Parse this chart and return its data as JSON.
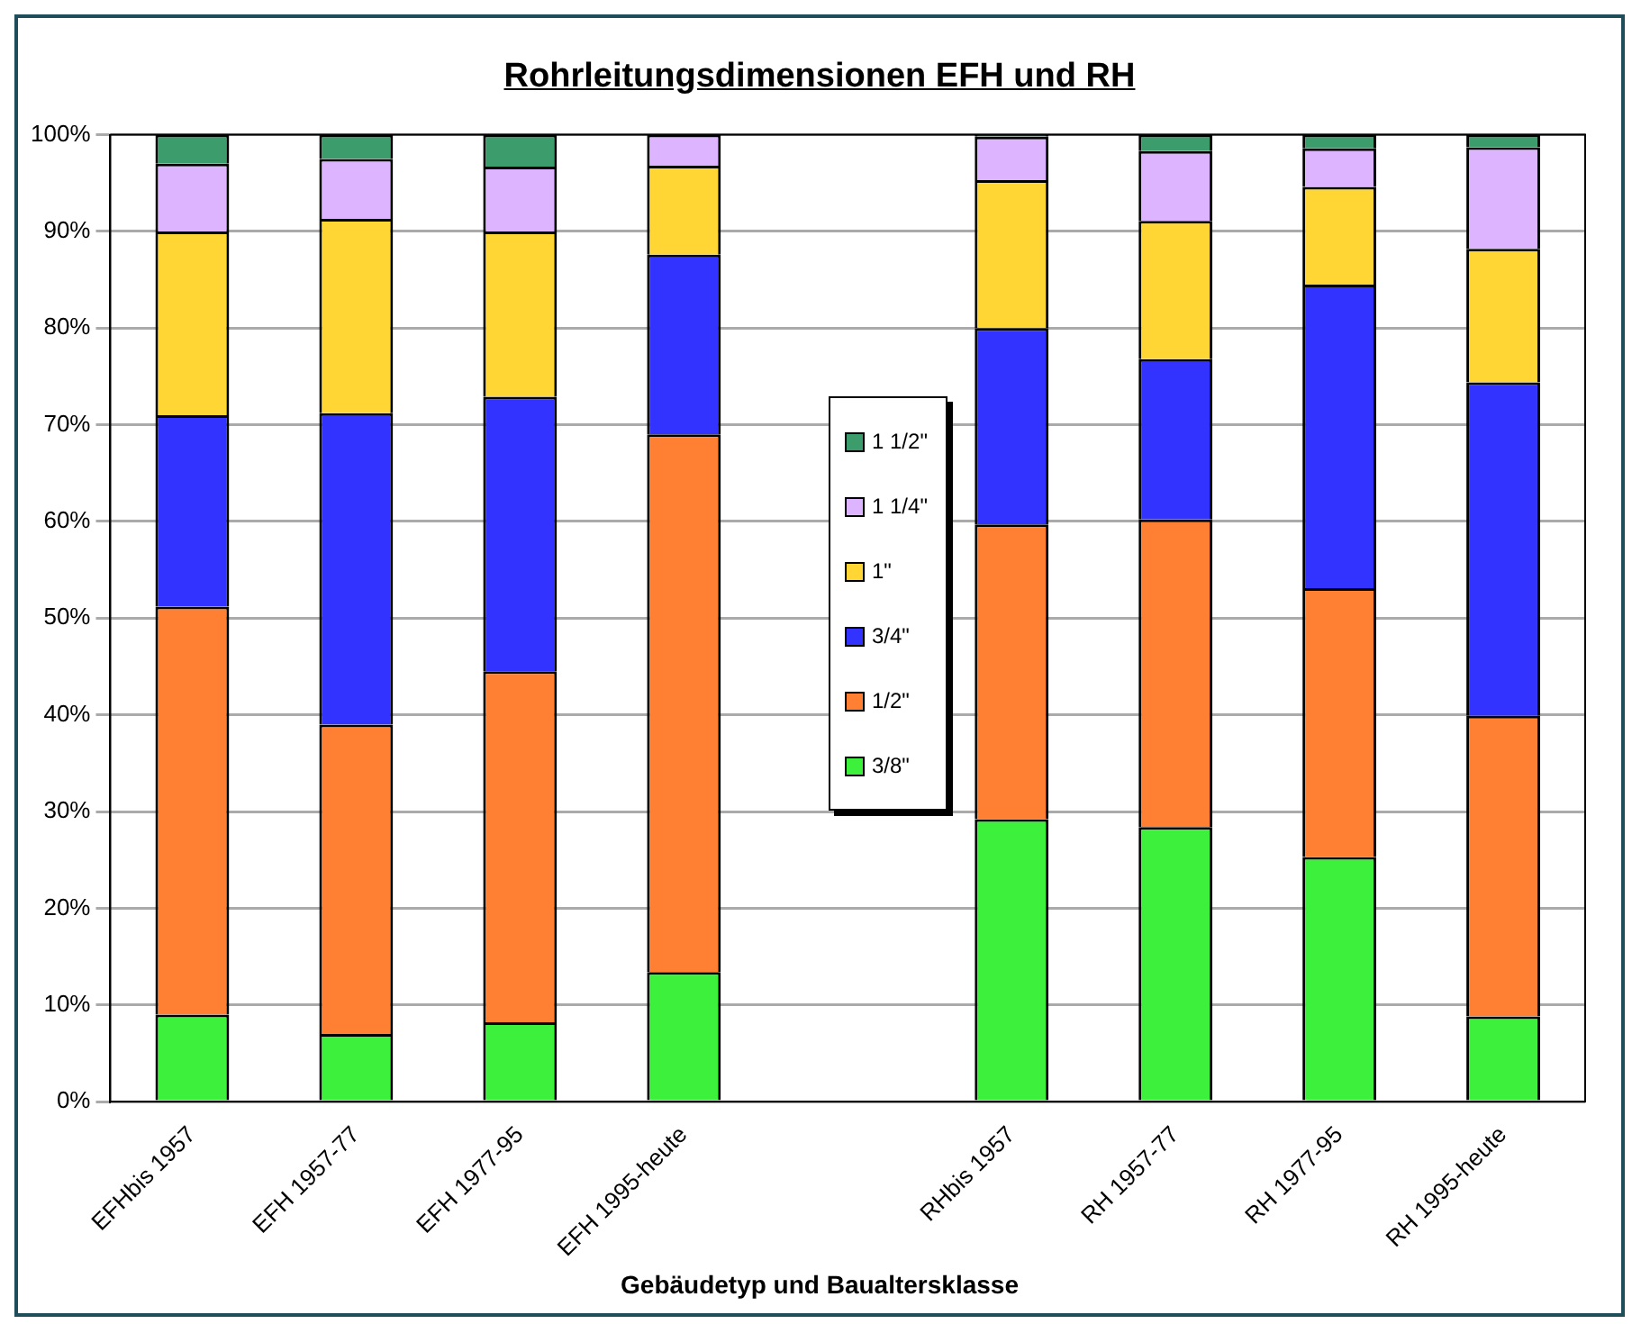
{
  "chart_data": {
    "type": "bar",
    "stacked": true,
    "title": "Rohrleitungsdimensionen EFH und RH",
    "xlabel": "Gebäudetyp und Baualtersklasse",
    "categories": [
      "EFHbis 1957",
      "EFH 1957-77",
      "EFH 1977-95",
      "EFH 1995-heute",
      null,
      "RHbis 1957",
      "RH 1957-77",
      "RH 1977-95",
      "RH 1995-heute"
    ],
    "series": [
      {
        "name": "3/8\"",
        "color": "#3cf03c",
        "values": [
          9,
          7,
          8.2,
          13.4,
          null,
          29.2,
          28.4,
          25.3,
          8.8
        ]
      },
      {
        "name": "1/2\"",
        "color": "#ff8033",
        "values": [
          42.2,
          32,
          36.3,
          55.6,
          null,
          30.5,
          31.8,
          27.8,
          31.1
        ]
      },
      {
        "name": "3/4\"",
        "color": "#3333ff",
        "values": [
          19.8,
          32.2,
          28.4,
          18.6,
          null,
          20.3,
          16.6,
          31.4,
          34.5
        ]
      },
      {
        "name": "1\"",
        "color": "#ffd633",
        "values": [
          19,
          20.1,
          17.1,
          9.2,
          null,
          15.3,
          14.3,
          10.1,
          13.8
        ]
      },
      {
        "name": "1 1/4\"",
        "color": "#dcb4ff",
        "values": [
          7,
          6.2,
          6.7,
          3.2,
          null,
          4.5,
          7.2,
          4,
          10.5
        ]
      },
      {
        "name": "1 1/2\"",
        "color": "#3c9c6c",
        "values": [
          3,
          2.5,
          3.3,
          0,
          null,
          0.2,
          1.7,
          1.4,
          1.3
        ]
      }
    ],
    "ylim": [
      0,
      100
    ],
    "yticks": [
      {
        "value": 0,
        "label": "0%"
      },
      {
        "value": 10,
        "label": "10%"
      },
      {
        "value": 20,
        "label": "20%"
      },
      {
        "value": 30,
        "label": "30%"
      },
      {
        "value": 40,
        "label": "40%"
      },
      {
        "value": 50,
        "label": "50%"
      },
      {
        "value": 60,
        "label": "60%"
      },
      {
        "value": 70,
        "label": "70%"
      },
      {
        "value": 80,
        "label": "80%"
      },
      {
        "value": 90,
        "label": "90%"
      },
      {
        "value": 100,
        "label": "100%"
      }
    ],
    "grid": "y",
    "legend": "center"
  }
}
